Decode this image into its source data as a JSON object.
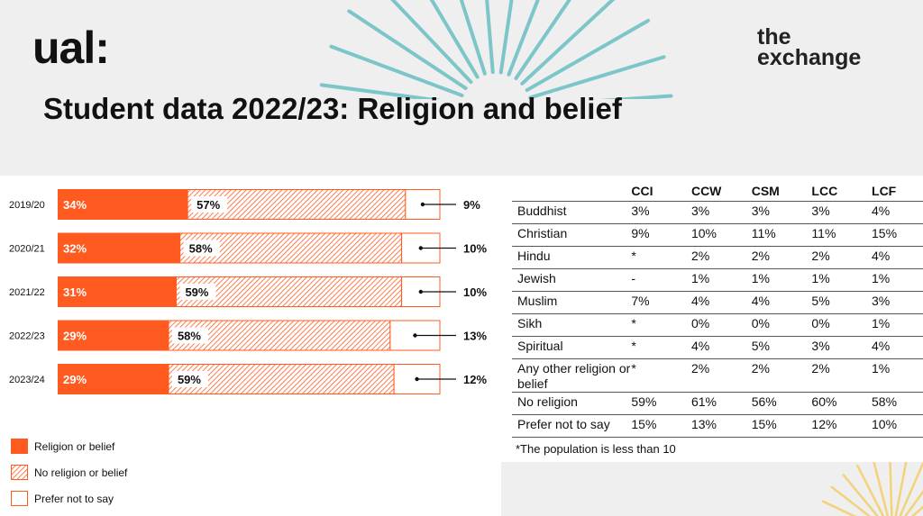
{
  "header": {
    "logo_text": "ual:",
    "brand_line1": "the",
    "brand_line2": "exchange",
    "title": "Student data 2022/23: Religion and belief"
  },
  "colors": {
    "religion": "#ff5a1f",
    "no_religion_hatch": "#ff5a1f",
    "prefer_not": "#ffffff",
    "ray": "#7cc6c9",
    "ray_gold": "#f3d27a"
  },
  "chart_data": {
    "type": "bar",
    "orientation": "horizontal",
    "stacked": true,
    "categories": [
      "2019/20",
      "2020/21",
      "2021/22",
      "2022/23",
      "2023/24"
    ],
    "series": [
      {
        "name": "Religion or belief",
        "values": [
          34,
          32,
          31,
          29,
          29
        ],
        "labels": [
          "34%",
          "32%",
          "31%",
          "29%",
          "29%"
        ]
      },
      {
        "name": "No religion or belief",
        "values": [
          57,
          58,
          59,
          58,
          59
        ],
        "labels": [
          "57%",
          "58%",
          "59%",
          "58%",
          "59%"
        ]
      },
      {
        "name": "Prefer not to say",
        "values": [
          9,
          10,
          10,
          13,
          12
        ],
        "labels": [
          "9%",
          "10%",
          "10%",
          "13%",
          "12%"
        ]
      }
    ],
    "legend_position": "bottom-left"
  },
  "table": {
    "columns": [
      "CCI",
      "CCW",
      "CSM",
      "LCC",
      "LCF"
    ],
    "rows": [
      {
        "label": "Buddhist",
        "values": [
          "3%",
          "3%",
          "3%",
          "3%",
          "4%"
        ]
      },
      {
        "label": "Christian",
        "values": [
          "9%",
          "10%",
          "11%",
          "11%",
          "15%"
        ]
      },
      {
        "label": "Hindu",
        "values": [
          "*",
          "2%",
          "2%",
          "2%",
          "4%"
        ]
      },
      {
        "label": "Jewish",
        "values": [
          "-",
          "1%",
          "1%",
          "1%",
          "1%"
        ]
      },
      {
        "label": "Muslim",
        "values": [
          "7%",
          "4%",
          "4%",
          "5%",
          "3%"
        ]
      },
      {
        "label": "Sikh",
        "values": [
          "*",
          "0%",
          "0%",
          "0%",
          "1%"
        ]
      },
      {
        "label": "Spiritual",
        "values": [
          "*",
          "4%",
          "5%",
          "3%",
          "4%"
        ]
      },
      {
        "label": "Any other religion or belief",
        "values": [
          "*",
          "2%",
          "2%",
          "2%",
          "1%"
        ]
      },
      {
        "label": "No religion",
        "values": [
          "59%",
          "61%",
          "56%",
          "60%",
          "58%"
        ]
      },
      {
        "label": "Prefer not to say",
        "values": [
          "15%",
          "13%",
          "15%",
          "12%",
          "10%"
        ]
      }
    ],
    "footnote": "*The population is less than 10"
  }
}
